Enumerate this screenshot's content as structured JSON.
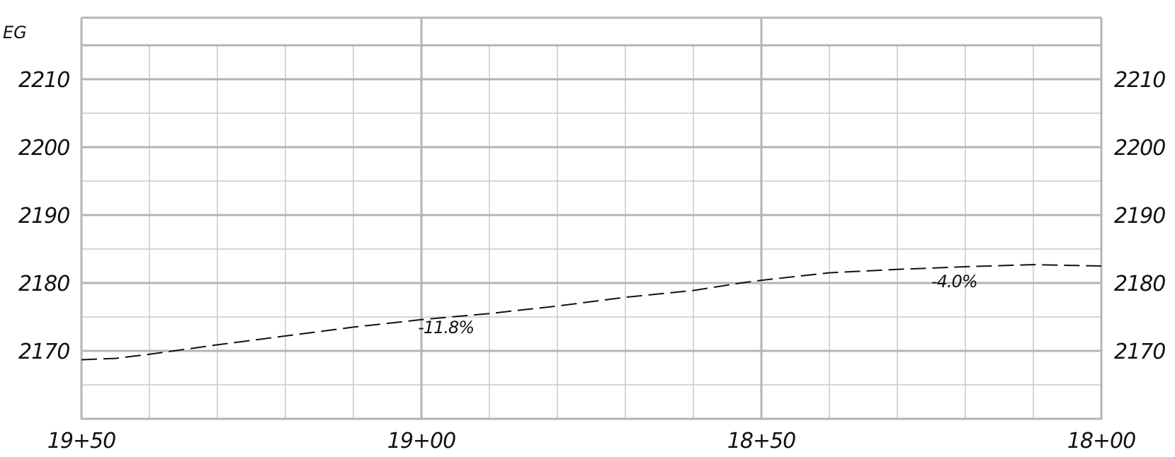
{
  "chart_data": {
    "type": "line",
    "profile_label": "EG",
    "x_tick_labels": [
      "19+50",
      "19+00",
      "18+50",
      "18+00"
    ],
    "x_ticks": [
      1950,
      1900,
      1850,
      1800
    ],
    "xlim": [
      1950,
      1800
    ],
    "x_reversed": true,
    "y_tick_labels": [
      "2170",
      "2180",
      "2190",
      "2200",
      "2210"
    ],
    "y_ticks": [
      2170,
      2180,
      2190,
      2200,
      2210
    ],
    "ylim": [
      2160,
      2215
    ],
    "grid": true,
    "series": [
      {
        "style": "dashed",
        "x": [
          1950,
          1945,
          1940,
          1930,
          1920,
          1910,
          1900,
          1890,
          1880,
          1870,
          1860,
          1853,
          1850,
          1840,
          1830,
          1820,
          1810,
          1800
        ],
        "y": [
          2168.7,
          2168.9,
          2169.5,
          2170.9,
          2172.2,
          2173.5,
          2174.6,
          2175.5,
          2176.6,
          2177.9,
          2178.9,
          2180.0,
          2180.4,
          2181.5,
          2182.0,
          2182.4,
          2182.7,
          2182.5
        ]
      }
    ],
    "annotations": [
      {
        "text": "-11.8%",
        "x": 1900.5,
        "y": 2172.6
      },
      {
        "text": "-4.0%",
        "x": 1825,
        "y": 2179.4
      }
    ]
  },
  "colors": {
    "grid_major": "#b4b4b4",
    "grid_minor": "#c8c8c8",
    "line": "#111111",
    "text": "#111111"
  }
}
